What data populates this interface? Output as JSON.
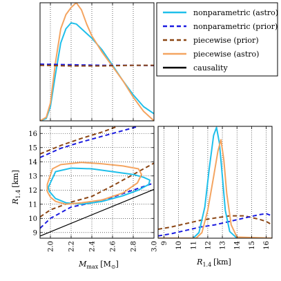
{
  "chart_data": {
    "type": "corner",
    "legend": {
      "placement": "top-right",
      "entries": [
        {
          "label": "nonparametric (astro)",
          "color": "#1fbfea",
          "dash": "solid"
        },
        {
          "label": "nonparametric (prior)",
          "color": "#1a1adf",
          "dash": "dashed"
        },
        {
          "label": "piecewise (prior)",
          "color": "#8b4513",
          "dash": "dashed"
        },
        {
          "label": "piecewise (astro)",
          "color": "#f4a460",
          "dash": "solid"
        },
        {
          "label": "causality",
          "color": "#000000",
          "dash": "solid"
        }
      ]
    },
    "panels": [
      {
        "id": "mmax-marginal",
        "type": "line",
        "xlim": [
          1.9,
          3.0
        ],
        "ylim": [
          0,
          1
        ],
        "grid": true,
        "xticks": [
          2.0,
          2.2,
          2.4,
          2.6,
          2.8,
          3.0
        ],
        "yticks": [],
        "series": [
          {
            "name": "nonparametric (astro)",
            "x": [
              1.9,
              1.96,
              2.0,
              2.05,
              2.1,
              2.15,
              2.2,
              2.25,
              2.3,
              2.35,
              2.4,
              2.5,
              2.6,
              2.7,
              2.8,
              2.9,
              3.0
            ],
            "y": [
              0.0,
              0.02,
              0.12,
              0.4,
              0.66,
              0.78,
              0.83,
              0.82,
              0.78,
              0.74,
              0.7,
              0.6,
              0.47,
              0.34,
              0.22,
              0.12,
              0.06
            ]
          },
          {
            "name": "piecewise (astro)",
            "x": [
              1.9,
              1.96,
              2.0,
              2.05,
              2.1,
              2.15,
              2.2,
              2.25,
              2.3,
              2.35,
              2.4,
              2.5,
              2.6,
              2.7,
              2.8,
              2.9,
              3.0
            ],
            "y": [
              0.0,
              0.03,
              0.15,
              0.5,
              0.78,
              0.9,
              0.96,
              1.0,
              0.94,
              0.82,
              0.72,
              0.58,
              0.46,
              0.34,
              0.2,
              0.08,
              0.0
            ]
          },
          {
            "name": "nonparametric (prior)",
            "x": [
              1.9,
              2.2,
              2.5,
              2.8,
              3.0
            ],
            "y": [
              0.48,
              0.475,
              0.47,
              0.47,
              0.468
            ]
          },
          {
            "name": "piecewise (prior)",
            "x": [
              1.9,
              2.2,
              2.5,
              2.8,
              3.0
            ],
            "y": [
              0.47,
              0.465,
              0.465,
              0.47,
              0.47
            ]
          }
        ]
      },
      {
        "id": "mmax-r14-joint",
        "type": "line",
        "xlim": [
          1.9,
          3.0
        ],
        "ylim": [
          8.6,
          16.5
        ],
        "grid": true,
        "xticks": [
          2.0,
          2.2,
          2.4,
          2.6,
          2.8,
          3.0
        ],
        "yticks": [
          9,
          10,
          11,
          12,
          13,
          14,
          15,
          16
        ],
        "xlabel": "M_max [M_⊙]",
        "ylabel": "R_1.4 [km]",
        "series": [
          {
            "name": "causality",
            "x": [
              1.9,
              3.0
            ],
            "y": [
              8.75,
              12.05
            ]
          },
          {
            "name": "nonparametric (prior)",
            "x": [
              1.9,
              2.1,
              2.3,
              2.5,
              2.7,
              2.85
            ],
            "y": [
              14.3,
              14.95,
              15.4,
              15.8,
              16.2,
              16.5
            ]
          },
          {
            "name": "nonparametric (prior)",
            "x": [
              1.9,
              2.0,
              2.2,
              2.4,
              2.6,
              2.8,
              3.0
            ],
            "y": [
              9.3,
              10.0,
              10.8,
              11.1,
              11.5,
              12.0,
              12.5
            ]
          },
          {
            "name": "piecewise (prior)",
            "x": [
              1.9,
              2.1,
              2.3,
              2.5,
              2.65
            ],
            "y": [
              14.55,
              15.15,
              15.65,
              16.1,
              16.5
            ]
          },
          {
            "name": "piecewise (prior)",
            "x": [
              1.9,
              2.0,
              2.2,
              2.4,
              2.6,
              2.8,
              3.0
            ],
            "y": [
              10.1,
              10.6,
              11.15,
              11.55,
              12.3,
              13.1,
              13.9
            ]
          },
          {
            "name": "nonparametric (astro)",
            "closed": true,
            "x": [
              1.98,
              2.05,
              2.2,
              2.4,
              2.6,
              2.8,
              2.9,
              2.96,
              2.95,
              2.85,
              2.7,
              2.5,
              2.3,
              2.15,
              2.05,
              1.99
            ],
            "y": [
              12.2,
              13.3,
              13.55,
              13.5,
              13.3,
              13.1,
              12.9,
              12.7,
              12.4,
              12.0,
              11.6,
              11.2,
              11.0,
              11.1,
              11.4,
              11.9
            ]
          },
          {
            "name": "piecewise (astro)",
            "closed": true,
            "x": [
              1.97,
              2.02,
              2.1,
              2.3,
              2.5,
              2.7,
              2.85,
              2.88,
              2.84,
              2.7,
              2.5,
              2.3,
              2.15,
              2.05,
              2.0,
              1.97
            ],
            "y": [
              12.4,
              13.5,
              13.8,
              13.95,
              13.85,
              13.7,
              13.5,
              13.1,
              12.5,
              11.8,
              11.3,
              11.1,
              11.0,
              11.2,
              11.5,
              11.9
            ]
          }
        ]
      },
      {
        "id": "r14-marginal",
        "type": "line",
        "xlim": [
          8.6,
          16.4
        ],
        "ylim": [
          0,
          1
        ],
        "grid": true,
        "xticks": [
          9,
          10,
          11,
          12,
          13,
          14,
          15,
          16
        ],
        "yticks": [],
        "xlabel": "R_1.4 [km]",
        "series": [
          {
            "name": "piecewise (prior)",
            "x": [
              8.6,
              9.5,
              10.5,
              11.5,
              12.5,
              13.5,
              14.5,
              15.5,
              16.0,
              16.4
            ],
            "y": [
              0.08,
              0.1,
              0.13,
              0.16,
              0.18,
              0.2,
              0.2,
              0.17,
              0.15,
              0.12
            ]
          },
          {
            "name": "nonparametric (prior)",
            "x": [
              8.6,
              9.5,
              10.5,
              11.5,
              12.5,
              13.5,
              14.5,
              15.5,
              16.0,
              16.4
            ],
            "y": [
              0.02,
              0.04,
              0.07,
              0.1,
              0.12,
              0.15,
              0.18,
              0.21,
              0.22,
              0.2
            ]
          },
          {
            "name": "nonparametric (astro)",
            "x": [
              8.6,
              11.0,
              11.4,
              11.8,
              12.1,
              12.4,
              12.6,
              12.8,
              13.0,
              13.2,
              13.5,
              14.0,
              16.4
            ],
            "y": [
              0.0,
              0.0,
              0.05,
              0.28,
              0.62,
              0.92,
              0.99,
              0.85,
              0.55,
              0.25,
              0.06,
              0.0,
              0.0
            ]
          },
          {
            "name": "piecewise (astro)",
            "x": [
              8.6,
              11.2,
              11.6,
              12.0,
              12.4,
              12.7,
              12.9,
              13.1,
              13.3,
              13.6,
              14.0,
              16.4
            ],
            "y": [
              0.0,
              0.0,
              0.05,
              0.25,
              0.55,
              0.78,
              0.88,
              0.7,
              0.4,
              0.12,
              0.01,
              0.0
            ]
          }
        ]
      }
    ]
  },
  "axis_text": {
    "mmax_label": "M",
    "mmax_sub": "max",
    "mmax_unit_open": "[M",
    "mmax_unit_sub": "⊙",
    "mmax_unit_close": "]",
    "r_label": "R",
    "r_sub": "1.4",
    "r_unit": "[km]"
  }
}
